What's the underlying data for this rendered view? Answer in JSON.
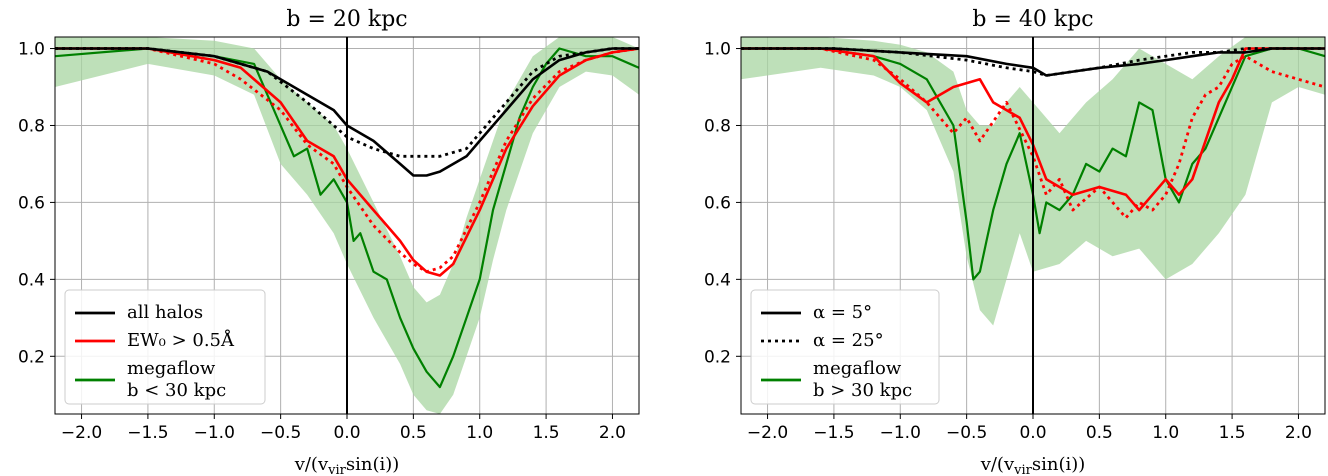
{
  "colors": {
    "all_halos": "#000000",
    "ew_cut": "#ff0000",
    "megaflow": "#008000",
    "megaflow_band": "#a8d5a2",
    "grid": "#b0b0b0"
  },
  "chart_data": [
    {
      "type": "line",
      "title": "b = 20 kpc",
      "xlabel": "v/(v_vir sin(i))",
      "xlim": [
        -2.2,
        2.2
      ],
      "ylim": [
        0.05,
        1.03
      ],
      "xticks": [
        -2.0,
        -1.5,
        -1.0,
        -0.5,
        0.0,
        0.5,
        1.0,
        1.5,
        2.0
      ],
      "xtick_labels": [
        "−2.0",
        "−1.5",
        "−1.0",
        "−0.5",
        "0.0",
        "0.5",
        "1.0",
        "1.5",
        "2.0"
      ],
      "yticks": [
        0.2,
        0.4,
        0.6,
        0.8,
        1.0
      ],
      "ytick_labels": [
        "0.2",
        "0.4",
        "0.6",
        "0.8",
        "1.0"
      ],
      "grid": true,
      "vline_x": 0.0,
      "legend": {
        "position": "lower-left",
        "entries": [
          {
            "style": "solid-black",
            "lines": [
              "all halos"
            ]
          },
          {
            "style": "solid-red",
            "lines": [
              "EW₀ > 0.5Å"
            ]
          },
          {
            "style": "solid-green",
            "lines": [
              "megaflow",
              "b < 30 kpc"
            ]
          }
        ]
      },
      "series": [
        {
          "style": "black-solid",
          "x": [
            -2.2,
            -1.5,
            -1.0,
            -0.6,
            -0.3,
            -0.1,
            0.0,
            0.2,
            0.4,
            0.5,
            0.6,
            0.7,
            0.9,
            1.0,
            1.2,
            1.4,
            1.6,
            1.8,
            2.0,
            2.2
          ],
          "y": [
            1.0,
            1.0,
            0.98,
            0.94,
            0.88,
            0.84,
            0.8,
            0.76,
            0.7,
            0.67,
            0.67,
            0.68,
            0.72,
            0.76,
            0.84,
            0.92,
            0.97,
            0.99,
            1.0,
            1.0
          ]
        },
        {
          "style": "black-dotted",
          "x": [
            -2.2,
            -1.5,
            -1.0,
            -0.6,
            -0.3,
            -0.1,
            0.0,
            0.2,
            0.4,
            0.5,
            0.6,
            0.7,
            0.9,
            1.0,
            1.2,
            1.4,
            1.6,
            1.8,
            2.0,
            2.2
          ],
          "y": [
            1.0,
            1.0,
            0.98,
            0.94,
            0.86,
            0.8,
            0.77,
            0.74,
            0.72,
            0.72,
            0.72,
            0.72,
            0.74,
            0.78,
            0.86,
            0.94,
            0.98,
            0.99,
            1.0,
            1.0
          ]
        },
        {
          "style": "red-solid",
          "x": [
            -2.2,
            -1.5,
            -1.0,
            -0.8,
            -0.5,
            -0.3,
            -0.1,
            0.0,
            0.2,
            0.4,
            0.5,
            0.6,
            0.7,
            0.8,
            1.0,
            1.2,
            1.4,
            1.6,
            1.8,
            2.0,
            2.2
          ],
          "y": [
            1.0,
            1.0,
            0.97,
            0.95,
            0.86,
            0.76,
            0.72,
            0.66,
            0.58,
            0.5,
            0.45,
            0.42,
            0.41,
            0.44,
            0.58,
            0.74,
            0.85,
            0.93,
            0.97,
            0.99,
            1.0
          ]
        },
        {
          "style": "red-dotted",
          "x": [
            -2.2,
            -1.5,
            -1.0,
            -0.8,
            -0.5,
            -0.3,
            -0.1,
            0.0,
            0.2,
            0.4,
            0.5,
            0.6,
            0.7,
            0.8,
            1.0,
            1.2,
            1.4,
            1.6,
            1.8,
            2.0,
            2.2
          ],
          "y": [
            1.0,
            1.0,
            0.96,
            0.92,
            0.84,
            0.75,
            0.7,
            0.64,
            0.54,
            0.47,
            0.44,
            0.42,
            0.43,
            0.46,
            0.6,
            0.76,
            0.87,
            0.94,
            0.97,
            0.99,
            1.0
          ]
        },
        {
          "style": "green-solid",
          "x": [
            -2.2,
            -1.5,
            -1.0,
            -0.7,
            -0.5,
            -0.4,
            -0.3,
            -0.2,
            -0.1,
            0.0,
            0.05,
            0.1,
            0.2,
            0.3,
            0.4,
            0.5,
            0.6,
            0.7,
            0.8,
            0.9,
            1.0,
            1.1,
            1.2,
            1.3,
            1.4,
            1.5,
            1.6,
            1.8,
            2.0,
            2.2
          ],
          "y": [
            0.98,
            1.0,
            0.98,
            0.96,
            0.8,
            0.72,
            0.74,
            0.62,
            0.66,
            0.6,
            0.5,
            0.52,
            0.42,
            0.4,
            0.3,
            0.22,
            0.16,
            0.12,
            0.2,
            0.3,
            0.4,
            0.58,
            0.7,
            0.82,
            0.9,
            0.96,
            1.0,
            0.98,
            0.98,
            0.95
          ]
        },
        {
          "style": "green-band",
          "x": [
            -2.2,
            -1.5,
            -1.0,
            -0.7,
            -0.5,
            -0.3,
            -0.1,
            0.0,
            0.2,
            0.4,
            0.5,
            0.6,
            0.7,
            0.8,
            0.9,
            1.0,
            1.1,
            1.2,
            1.4,
            1.6,
            1.8,
            2.0,
            2.2
          ],
          "y_low": [
            0.9,
            0.96,
            0.93,
            0.88,
            0.7,
            0.62,
            0.52,
            0.44,
            0.3,
            0.18,
            0.1,
            0.06,
            0.05,
            0.1,
            0.2,
            0.3,
            0.45,
            0.58,
            0.78,
            0.9,
            0.94,
            0.93,
            0.88
          ],
          "y_high": [
            1.03,
            1.03,
            1.02,
            1.0,
            0.92,
            0.86,
            0.8,
            0.74,
            0.6,
            0.46,
            0.38,
            0.34,
            0.36,
            0.44,
            0.56,
            0.66,
            0.76,
            0.86,
            0.98,
            1.03,
            1.03,
            1.03,
            1.0
          ]
        }
      ]
    },
    {
      "type": "line",
      "title": "b = 40 kpc",
      "xlabel": "v/(v_vir sin(i))",
      "xlim": [
        -2.2,
        2.2
      ],
      "ylim": [
        0.05,
        1.03
      ],
      "xticks": [
        -2.0,
        -1.5,
        -1.0,
        -0.5,
        0.0,
        0.5,
        1.0,
        1.5,
        2.0
      ],
      "xtick_labels": [
        "−2.0",
        "−1.5",
        "−1.0",
        "−0.5",
        "0.0",
        "0.5",
        "1.0",
        "1.5",
        "2.0"
      ],
      "yticks": [
        0.2,
        0.4,
        0.6,
        0.8,
        1.0
      ],
      "ytick_labels": [
        "0.2",
        "0.4",
        "0.6",
        "0.8",
        "1.0"
      ],
      "grid": true,
      "vline_x": 0.0,
      "legend": {
        "position": "lower-left",
        "entries": [
          {
            "style": "solid-black",
            "lines": [
              "α = 5°"
            ]
          },
          {
            "style": "dotted-black",
            "lines": [
              "α = 25°"
            ]
          },
          {
            "style": "solid-green",
            "lines": [
              "megaflow",
              "b > 30 kpc"
            ]
          }
        ]
      },
      "series": [
        {
          "style": "black-solid",
          "x": [
            -2.2,
            -1.5,
            -1.0,
            -0.5,
            -0.2,
            0.0,
            0.1,
            0.3,
            0.5,
            0.8,
            1.0,
            1.2,
            1.4,
            1.6,
            1.8,
            2.0,
            2.2
          ],
          "y": [
            1.0,
            1.0,
            0.99,
            0.98,
            0.96,
            0.95,
            0.93,
            0.94,
            0.95,
            0.96,
            0.97,
            0.98,
            0.99,
            0.99,
            1.0,
            1.0,
            1.0
          ]
        },
        {
          "style": "black-dotted",
          "x": [
            -2.2,
            -1.5,
            -1.0,
            -0.5,
            -0.2,
            0.0,
            0.1,
            0.3,
            0.5,
            0.8,
            1.0,
            1.2,
            1.4,
            1.6,
            1.8,
            2.0,
            2.2
          ],
          "y": [
            1.0,
            1.0,
            0.99,
            0.97,
            0.95,
            0.94,
            0.93,
            0.94,
            0.95,
            0.97,
            0.98,
            0.99,
            0.99,
            1.0,
            1.0,
            1.0,
            1.0
          ]
        },
        {
          "style": "red-solid",
          "x": [
            -2.2,
            -1.6,
            -1.2,
            -1.0,
            -0.8,
            -0.6,
            -0.4,
            -0.3,
            -0.2,
            -0.1,
            0.0,
            0.1,
            0.2,
            0.3,
            0.5,
            0.7,
            0.8,
            0.9,
            1.0,
            1.1,
            1.2,
            1.3,
            1.4,
            1.5,
            1.6,
            1.8,
            2.0,
            2.2
          ],
          "y": [
            1.0,
            1.0,
            0.98,
            0.91,
            0.86,
            0.9,
            0.92,
            0.86,
            0.84,
            0.82,
            0.75,
            0.66,
            0.64,
            0.62,
            0.64,
            0.62,
            0.58,
            0.62,
            0.66,
            0.62,
            0.66,
            0.76,
            0.86,
            0.92,
            1.0,
            1.0,
            1.0,
            1.0
          ]
        },
        {
          "style": "red-dotted",
          "x": [
            -2.2,
            -1.6,
            -1.2,
            -1.0,
            -0.8,
            -0.6,
            -0.5,
            -0.4,
            -0.2,
            0.0,
            0.1,
            0.2,
            0.3,
            0.5,
            0.7,
            0.8,
            0.9,
            1.0,
            1.1,
            1.2,
            1.3,
            1.4,
            1.5,
            1.6,
            1.8,
            2.0,
            2.2
          ],
          "y": [
            1.0,
            1.0,
            0.97,
            0.92,
            0.86,
            0.78,
            0.82,
            0.76,
            0.86,
            0.72,
            0.62,
            0.66,
            0.58,
            0.64,
            0.56,
            0.6,
            0.58,
            0.62,
            0.7,
            0.82,
            0.88,
            0.9,
            0.96,
            0.98,
            0.94,
            0.92,
            0.9
          ]
        },
        {
          "style": "green-solid",
          "x": [
            -2.2,
            -1.6,
            -1.2,
            -1.0,
            -0.8,
            -0.6,
            -0.5,
            -0.45,
            -0.4,
            -0.35,
            -0.3,
            -0.2,
            -0.1,
            0.0,
            0.05,
            0.1,
            0.2,
            0.3,
            0.4,
            0.5,
            0.6,
            0.7,
            0.8,
            0.9,
            1.0,
            1.1,
            1.2,
            1.3,
            1.4,
            1.5,
            1.6,
            1.8,
            2.0,
            2.2
          ],
          "y": [
            1.0,
            1.0,
            0.98,
            0.96,
            0.92,
            0.8,
            0.55,
            0.4,
            0.42,
            0.5,
            0.58,
            0.7,
            0.78,
            0.62,
            0.52,
            0.6,
            0.58,
            0.62,
            0.7,
            0.68,
            0.74,
            0.72,
            0.86,
            0.84,
            0.66,
            0.6,
            0.7,
            0.74,
            0.82,
            0.9,
            0.98,
            1.0,
            1.0,
            0.98
          ]
        },
        {
          "style": "green-band",
          "x": [
            -2.2,
            -1.6,
            -1.2,
            -1.0,
            -0.8,
            -0.6,
            -0.5,
            -0.4,
            -0.3,
            -0.2,
            -0.1,
            0.0,
            0.2,
            0.4,
            0.6,
            0.8,
            1.0,
            1.2,
            1.4,
            1.6,
            1.8,
            2.0,
            2.2
          ],
          "y_low": [
            0.92,
            0.95,
            0.93,
            0.9,
            0.84,
            0.68,
            0.46,
            0.32,
            0.28,
            0.4,
            0.52,
            0.42,
            0.44,
            0.5,
            0.46,
            0.48,
            0.4,
            0.44,
            0.52,
            0.62,
            0.86,
            0.9,
            0.88
          ],
          "y_high": [
            1.03,
            1.03,
            1.02,
            1.01,
            0.99,
            0.94,
            0.84,
            0.8,
            0.8,
            0.86,
            0.9,
            0.86,
            0.78,
            0.86,
            0.92,
            1.0,
            0.96,
            0.92,
            0.98,
            1.03,
            1.03,
            1.03,
            1.03
          ]
        }
      ]
    }
  ]
}
